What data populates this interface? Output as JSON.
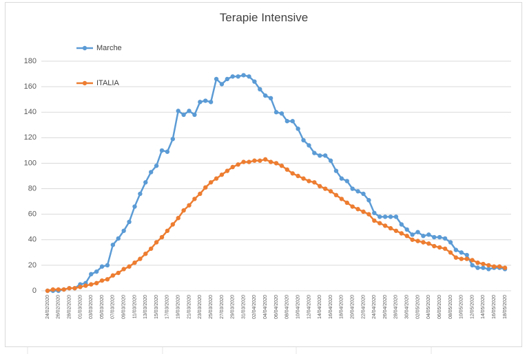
{
  "chart_data": {
    "type": "line",
    "title": "Terapie Intensive",
    "categories": [
      "24/02/2020",
      null,
      "26/02/2020",
      null,
      "28/02/2020",
      null,
      "01/03/2020",
      null,
      "03/03/2020",
      null,
      "05/03/2020",
      null,
      "07/03/2020",
      null,
      "09/03/2020",
      null,
      "11/03/2020",
      null,
      "13/03/2020",
      null,
      "15/03/2020",
      null,
      "17/03/2020",
      null,
      "19/03/2020",
      null,
      "21/03/2020",
      null,
      "23/03/2020",
      null,
      "25/03/2020",
      null,
      "27/03/2020",
      null,
      "29/03/2020",
      null,
      "31/03/2020",
      null,
      "02/04/2020",
      null,
      "04/04/2020",
      null,
      "06/04/2020",
      null,
      "08/04/2020",
      null,
      "10/04/2020",
      null,
      "12/04/2020",
      null,
      "14/04/2020",
      null,
      "16/04/2020",
      null,
      "18/04/2020",
      null,
      "20/04/2020",
      null,
      "22/04/2020",
      null,
      "24/04/2020",
      null,
      "26/04/2020",
      null,
      "28/04/2020",
      null,
      "30/04/2020",
      null,
      "02/05/2020",
      null,
      "04/05/2020",
      null,
      "06/05/2020",
      null,
      "08/05/2020",
      null,
      "10/05/2020",
      null,
      "12/05/2020",
      null,
      "14/05/2020",
      null,
      "16/05/2020",
      null,
      "18/05/2020"
    ],
    "series": [
      {
        "name": "Marche",
        "color": "#5b9bd5",
        "values": [
          0,
          0,
          0,
          1,
          2,
          2,
          5,
          6,
          13,
          15,
          19,
          20,
          36,
          41,
          47,
          54,
          66,
          76,
          85,
          93,
          98,
          110,
          109,
          119,
          141,
          138,
          141,
          138,
          148,
          149,
          148,
          166,
          162,
          166,
          168,
          168,
          169,
          168,
          164,
          158,
          153,
          151,
          140,
          139,
          133,
          133,
          127,
          118,
          114,
          108,
          106,
          106,
          102,
          94,
          88,
          86,
          80,
          78,
          76,
          71,
          61,
          58,
          58,
          58,
          58,
          52,
          48,
          44,
          46,
          43,
          44,
          42,
          42,
          41,
          38,
          32,
          30,
          28,
          20,
          18,
          18,
          17,
          18,
          18,
          17
        ]
      },
      {
        "name": "ITALIA",
        "color": "#ed7d31",
        "values": [
          0,
          1,
          1,
          1,
          2,
          2,
          3,
          4,
          5,
          6,
          8,
          9,
          12,
          14,
          17,
          19,
          22,
          25,
          29,
          33,
          38,
          42,
          47,
          52,
          57,
          63,
          67,
          72,
          76,
          81,
          85,
          88,
          91,
          94,
          97,
          99,
          101,
          101,
          102,
          102,
          103,
          101,
          100,
          98,
          95,
          92,
          90,
          88,
          86,
          85,
          82,
          80,
          78,
          75,
          72,
          69,
          66,
          64,
          62,
          60,
          55,
          53,
          51,
          49,
          47,
          45,
          43,
          40,
          39,
          38,
          37,
          35,
          34,
          33,
          30,
          26,
          25,
          25,
          24,
          22,
          21,
          20,
          19,
          19,
          18
        ]
      }
    ],
    "ylim": [
      0,
      180
    ],
    "yticks": [
      0,
      20,
      40,
      60,
      80,
      100,
      120,
      140,
      160,
      180
    ],
    "grid": true,
    "legend": "upper left"
  }
}
